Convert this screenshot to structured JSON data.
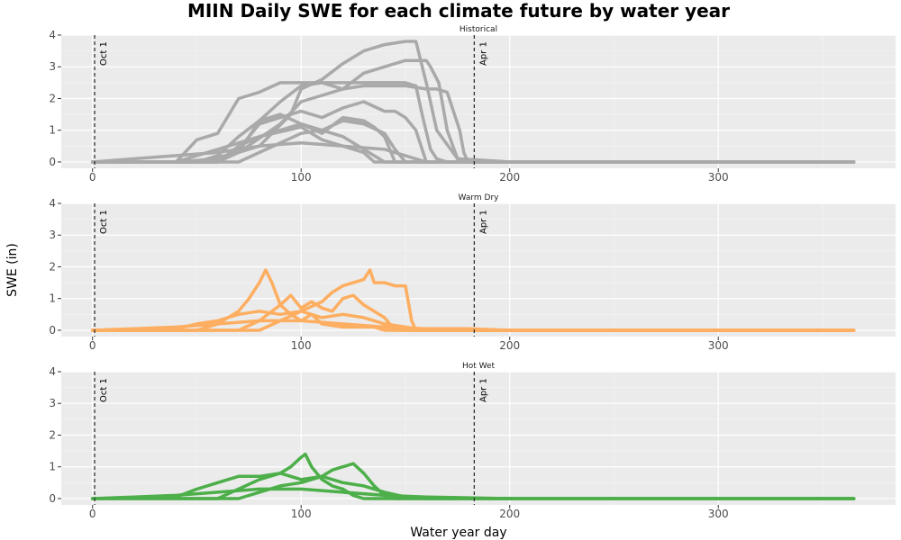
{
  "chart_data": {
    "type": "line",
    "title": "MIIN Daily SWE for each climate future by water year",
    "xlabel": "Water year day",
    "ylabel": "SWE (in)",
    "xlim": [
      -15,
      385
    ],
    "ylim": [
      -0.2,
      4.0
    ],
    "x_ticks": [
      0,
      100,
      200,
      300
    ],
    "y_ticks": [
      0,
      1,
      2,
      3,
      4
    ],
    "grid": true,
    "legend": "none",
    "reference_lines": [
      {
        "x": 1,
        "label": "Oct 1"
      },
      {
        "x": 183,
        "label": "Apr 1"
      }
    ],
    "panels": [
      {
        "label": "Historical",
        "color": "#A9A9A9",
        "series": [
          {
            "x": [
              0,
              40,
              50,
              60,
              70,
              80,
              90,
              100,
              110,
              120,
              130,
              140,
              150,
              155,
              158,
              162,
              165,
              170,
              175,
              200,
              365
            ],
            "y": [
              0,
              0,
              0.7,
              0.9,
              2.0,
              2.2,
              2.5,
              2.5,
              2.5,
              2.5,
              2.5,
              2.5,
              2.5,
              2.4,
              1.5,
              0.4,
              0.1,
              0,
              0,
              0,
              0
            ]
          },
          {
            "x": [
              0,
              40,
              60,
              80,
              95,
              100,
              110,
              120,
              130,
              140,
              150,
              155,
              160,
              165,
              175,
              200,
              365
            ],
            "y": [
              0,
              0,
              0.1,
              0.5,
              1.5,
              2.3,
              2.6,
              3.1,
              3.5,
              3.7,
              3.8,
              3.8,
              2.5,
              1.0,
              0.1,
              0,
              0
            ]
          },
          {
            "x": [
              0,
              50,
              70,
              90,
              100,
              110,
              120,
              130,
              140,
              150,
              160,
              162,
              166,
              170,
              175,
              200,
              365
            ],
            "y": [
              0,
              0,
              0.3,
              1.2,
              1.9,
              2.1,
              2.3,
              2.8,
              3.0,
              3.2,
              3.2,
              3.0,
              2.5,
              1.0,
              0.1,
              0,
              0
            ]
          },
          {
            "x": [
              0,
              60,
              70,
              80,
              90,
              100,
              110,
              120,
              130,
              140,
              150,
              160,
              165,
              170,
              176,
              178,
              180,
              200,
              365
            ],
            "y": [
              0,
              0,
              0.3,
              1.3,
              1.9,
              2.4,
              2.5,
              2.3,
              2.4,
              2.4,
              2.4,
              2.3,
              2.3,
              2.2,
              1.0,
              0.3,
              0,
              0,
              0
            ]
          },
          {
            "x": [
              0,
              60,
              70,
              80,
              90,
              100,
              110,
              120,
              130,
              140,
              145,
              150,
              155,
              160,
              200,
              365
            ],
            "y": [
              0,
              0,
              0.4,
              1.2,
              1.4,
              1.6,
              1.4,
              1.7,
              1.9,
              1.6,
              1.6,
              1.4,
              1.0,
              0,
              0,
              0
            ]
          },
          {
            "x": [
              0,
              50,
              60,
              70,
              80,
              90,
              100,
              110,
              120,
              130,
              135,
              140,
              145,
              200,
              365
            ],
            "y": [
              0,
              0,
              0.2,
              0.8,
              1.3,
              1.5,
              1.2,
              0.9,
              1.4,
              1.3,
              1.1,
              0.8,
              0,
              0,
              0
            ]
          },
          {
            "x": [
              0,
              60,
              70,
              80,
              90,
              100,
              110,
              120,
              125,
              130,
              140,
              200,
              365
            ],
            "y": [
              0,
              0,
              0.5,
              0.8,
              1.0,
              1.2,
              1.0,
              0.8,
              0.6,
              0.4,
              0,
              0,
              0
            ]
          },
          {
            "x": [
              0,
              70,
              80,
              90,
              100,
              110,
              120,
              130,
              140,
              145,
              150,
              200,
              365
            ],
            "y": [
              0,
              0,
              0.3,
              0.6,
              0.9,
              1.0,
              1.3,
              1.2,
              0.9,
              0.4,
              0,
              0,
              0
            ]
          },
          {
            "x": [
              0,
              40,
              60,
              80,
              100,
              110,
              120,
              130,
              135,
              200,
              365
            ],
            "y": [
              0,
              0,
              0.4,
              0.8,
              1.1,
              0.7,
              0.5,
              0.3,
              0,
              0,
              0
            ]
          },
          {
            "x": [
              0,
              20,
              40,
              60,
              80,
              100,
              120,
              140,
              160,
              200,
              365
            ],
            "y": [
              0,
              0.1,
              0.2,
              0.3,
              0.5,
              0.6,
              0.5,
              0.4,
              0,
              0,
              0
            ]
          }
        ]
      },
      {
        "label": "Warm Dry",
        "color": "#FDAE61",
        "series": [
          {
            "x": [
              0,
              50,
              60,
              70,
              75,
              80,
              83,
              86,
              90,
              95,
              100,
              105,
              110,
              120,
              130,
              135,
              140,
              150,
              152,
              160,
              200,
              365
            ],
            "y": [
              0,
              0,
              0.2,
              0.6,
              1.0,
              1.5,
              1.9,
              1.5,
              0.8,
              0.5,
              0.3,
              0.5,
              0.2,
              0.1,
              0.1,
              0.1,
              0,
              0,
              0,
              0,
              0,
              0
            ]
          },
          {
            "x": [
              0,
              80,
              90,
              100,
              110,
              115,
              120,
              125,
              130,
              133,
              135,
              140,
              145,
              150,
              153,
              155,
              200,
              365
            ],
            "y": [
              0,
              0,
              0.3,
              0.6,
              0.9,
              1.2,
              1.4,
              1.5,
              1.6,
              1.9,
              1.5,
              1.5,
              1.4,
              1.4,
              0.3,
              0,
              0,
              0
            ]
          },
          {
            "x": [
              0,
              70,
              80,
              90,
              95,
              100,
              105,
              110,
              115,
              120,
              125,
              130,
              140,
              145,
              200,
              365
            ],
            "y": [
              0,
              0,
              0.3,
              0.8,
              1.1,
              0.7,
              0.9,
              0.7,
              0.6,
              1.0,
              1.1,
              0.8,
              0.4,
              0,
              0,
              0
            ]
          },
          {
            "x": [
              0,
              40,
              50,
              60,
              70,
              80,
              90,
              100,
              110,
              120,
              130,
              140,
              150,
              160,
              200,
              365
            ],
            "y": [
              0,
              0.05,
              0.2,
              0.3,
              0.5,
              0.6,
              0.5,
              0.6,
              0.4,
              0.5,
              0.4,
              0.2,
              0.1,
              0,
              0,
              0
            ]
          },
          {
            "x": [
              0,
              20,
              40,
              60,
              80,
              100,
              120,
              140,
              160,
              180,
              200,
              365
            ],
            "y": [
              0,
              0.05,
              0.1,
              0.2,
              0.3,
              0.3,
              0.2,
              0.1,
              0.05,
              0.05,
              0,
              0
            ]
          }
        ]
      },
      {
        "label": "Hot Wet",
        "color": "#4DAF4A",
        "series": [
          {
            "x": [
              0,
              60,
              70,
              80,
              90,
              95,
              100,
              102,
              105,
              110,
              115,
              120,
              125,
              130,
              135,
              140,
              145,
              150,
              200,
              365
            ],
            "y": [
              0,
              0,
              0.3,
              0.6,
              0.8,
              1.0,
              1.3,
              1.4,
              1.0,
              0.6,
              0.4,
              0.3,
              0.1,
              0,
              0,
              0,
              0,
              0,
              0,
              0
            ]
          },
          {
            "x": [
              0,
              70,
              80,
              90,
              100,
              110,
              115,
              120,
              125,
              130,
              135,
              140,
              145,
              200,
              365
            ],
            "y": [
              0,
              0,
              0.2,
              0.4,
              0.5,
              0.7,
              0.9,
              1.0,
              1.1,
              0.8,
              0.4,
              0.1,
              0,
              0,
              0
            ]
          },
          {
            "x": [
              0,
              40,
              50,
              60,
              70,
              80,
              90,
              100,
              110,
              120,
              130,
              140,
              150,
              160,
              200,
              365
            ],
            "y": [
              0,
              0.05,
              0.3,
              0.5,
              0.7,
              0.7,
              0.8,
              0.6,
              0.7,
              0.5,
              0.4,
              0.2,
              0.05,
              0,
              0,
              0
            ]
          },
          {
            "x": [
              0,
              20,
              40,
              60,
              80,
              100,
              120,
              140,
              160,
              200,
              365
            ],
            "y": [
              0,
              0.05,
              0.1,
              0.2,
              0.3,
              0.3,
              0.2,
              0.1,
              0.05,
              0,
              0
            ]
          }
        ]
      }
    ]
  }
}
